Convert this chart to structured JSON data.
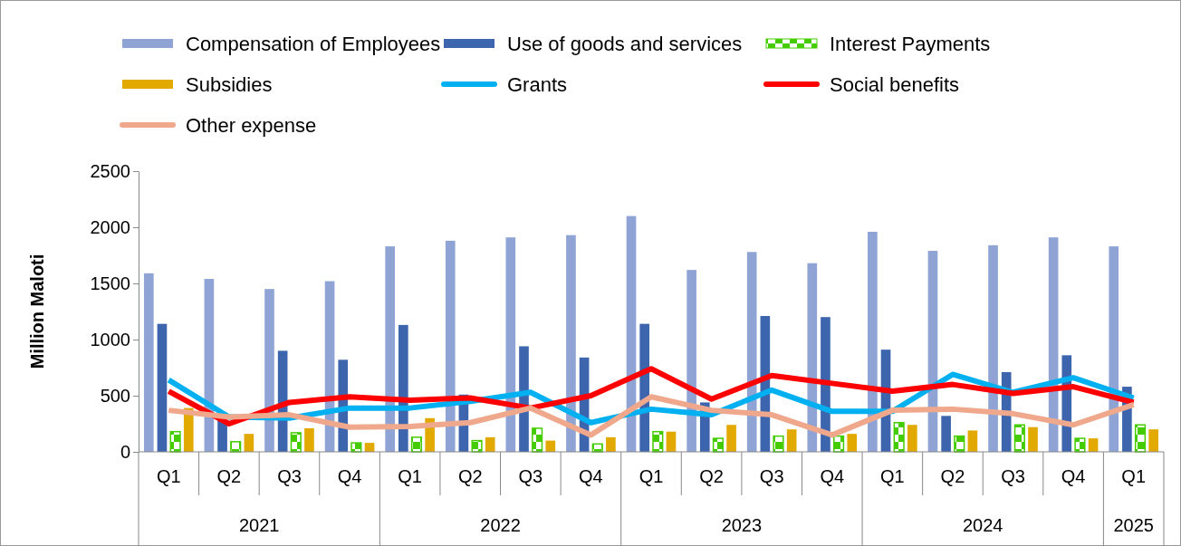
{
  "chart_data": {
    "type": "bar",
    "ylabel": "Million Maloti",
    "categories": [
      "Q1",
      "Q2",
      "Q3",
      "Q4",
      "Q1",
      "Q2",
      "Q3",
      "Q4",
      "Q1",
      "Q2",
      "Q3",
      "Q4",
      "Q1",
      "Q2",
      "Q3",
      "Q4",
      "Q1"
    ],
    "annotations": [
      "2021",
      "2022",
      "2023",
      "2024",
      "2025"
    ],
    "series": [
      {
        "name": "Compensation of Employees",
        "color": "#8fa4d4",
        "values": [
          1590,
          1540,
          1450,
          1520,
          1830,
          1880,
          1910,
          1930,
          2100,
          1620,
          1780,
          1680,
          1960,
          1790,
          1840,
          1910,
          1830
        ]
      },
      {
        "name": "Use of goods and services",
        "color": "#3d65ae",
        "values": [
          1140,
          320,
          900,
          820,
          1130,
          510,
          940,
          840,
          1140,
          440,
          1210,
          1200,
          910,
          320,
          710,
          860,
          580
        ]
      },
      {
        "name": "Interest Payments",
        "color": "#44cc00",
        "values": [
          180,
          90,
          170,
          80,
          130,
          100,
          210,
          70,
          180,
          120,
          140,
          140,
          260,
          140,
          240,
          120,
          240
        ]
      },
      {
        "name": "Subsidies",
        "color": "#e2aa00",
        "values": [
          390,
          160,
          210,
          80,
          300,
          130,
          100,
          130,
          180,
          240,
          200,
          160,
          240,
          190,
          220,
          120,
          200
        ]
      },
      {
        "name": "Grants",
        "type": "line",
        "color": "#00b0f0",
        "values": [
          640,
          310,
          300,
          390,
          390,
          450,
          530,
          260,
          380,
          330,
          550,
          360,
          360,
          690,
          530,
          660,
          480
        ]
      },
      {
        "name": "Social benefits",
        "type": "line",
        "color": "#ff0000",
        "values": [
          540,
          250,
          440,
          490,
          460,
          480,
          390,
          500,
          740,
          470,
          680,
          610,
          540,
          600,
          520,
          580,
          440
        ]
      },
      {
        "name": "Other expense",
        "type": "line",
        "color": "#f0a88c",
        "values": [
          370,
          310,
          330,
          220,
          225,
          260,
          390,
          150,
          490,
          370,
          330,
          150,
          370,
          380,
          340,
          240,
          420
        ]
      }
    ],
    "ylim": [
      0,
      2500
    ],
    "yticks": [
      0,
      500,
      1000,
      1500,
      2000,
      2500
    ],
    "legend": "top",
    "line_style": "solid"
  }
}
